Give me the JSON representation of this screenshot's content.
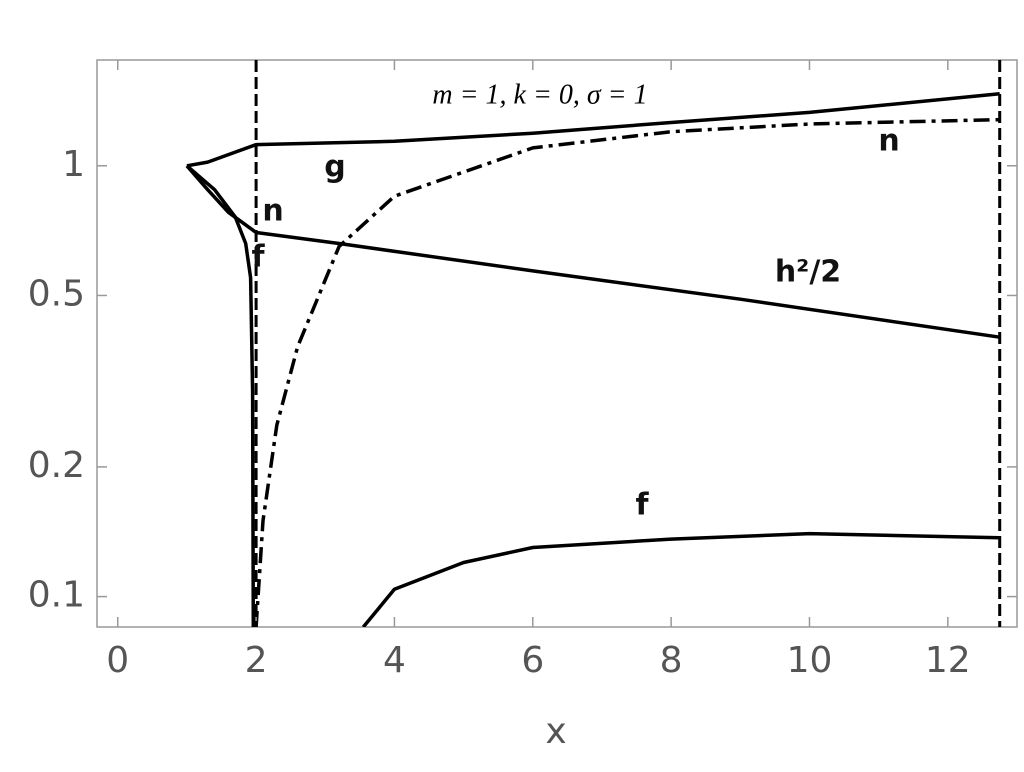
{
  "chart_data": {
    "type": "line",
    "title": "m = 1, k = 0, σ = 1",
    "x_label": "x",
    "yscale": "log",
    "xlim": [
      -0.3,
      13
    ],
    "ylim": [
      0.085,
      1.76
    ],
    "xticks": [
      0,
      2,
      4,
      6,
      8,
      10,
      12
    ],
    "yticks": [
      0.1,
      0.2,
      0.5,
      1
    ],
    "vlines": [
      2,
      12.75
    ],
    "series": [
      {
        "color": "#000000",
        "dash": "solid",
        "x": [
          1,
          1.3,
          2,
          4,
          6,
          8,
          10,
          12.75
        ],
        "values": [
          1,
          1.02,
          1.12,
          1.14,
          1.19,
          1.26,
          1.33,
          1.47
        ]
      },
      {
        "color": "#000000",
        "dash": "solid",
        "x": [
          1,
          1.3,
          1.6,
          2,
          3.2,
          6,
          9,
          12.75
        ],
        "values": [
          1,
          0.88,
          0.78,
          0.7,
          0.66,
          0.57,
          0.49,
          0.4
        ]
      },
      {
        "color": "#000000",
        "dash": "solid",
        "x": [
          1,
          1.4,
          1.7,
          1.85,
          1.92,
          1.95,
          1.96
        ],
        "values": [
          1,
          0.88,
          0.76,
          0.66,
          0.55,
          0.3,
          0.085
        ]
      },
      {
        "color": "#000000",
        "dash": "solid",
        "x": [
          3.55,
          4,
          5,
          6,
          8,
          10,
          12.75
        ],
        "values": [
          0.085,
          0.104,
          0.12,
          0.13,
          0.136,
          0.14,
          0.137
        ]
      },
      {
        "color": "#000000",
        "dash": "dashdot",
        "x": [
          2,
          2.1,
          2.3,
          2.6,
          3.2,
          4,
          6,
          8,
          10,
          12.75
        ],
        "values": [
          0.085,
          0.15,
          0.25,
          0.38,
          0.65,
          0.85,
          1.1,
          1.2,
          1.25,
          1.28
        ]
      }
    ],
    "annotations": [
      "g",
      "n",
      "f",
      "h²/2",
      "n",
      "f"
    ]
  }
}
